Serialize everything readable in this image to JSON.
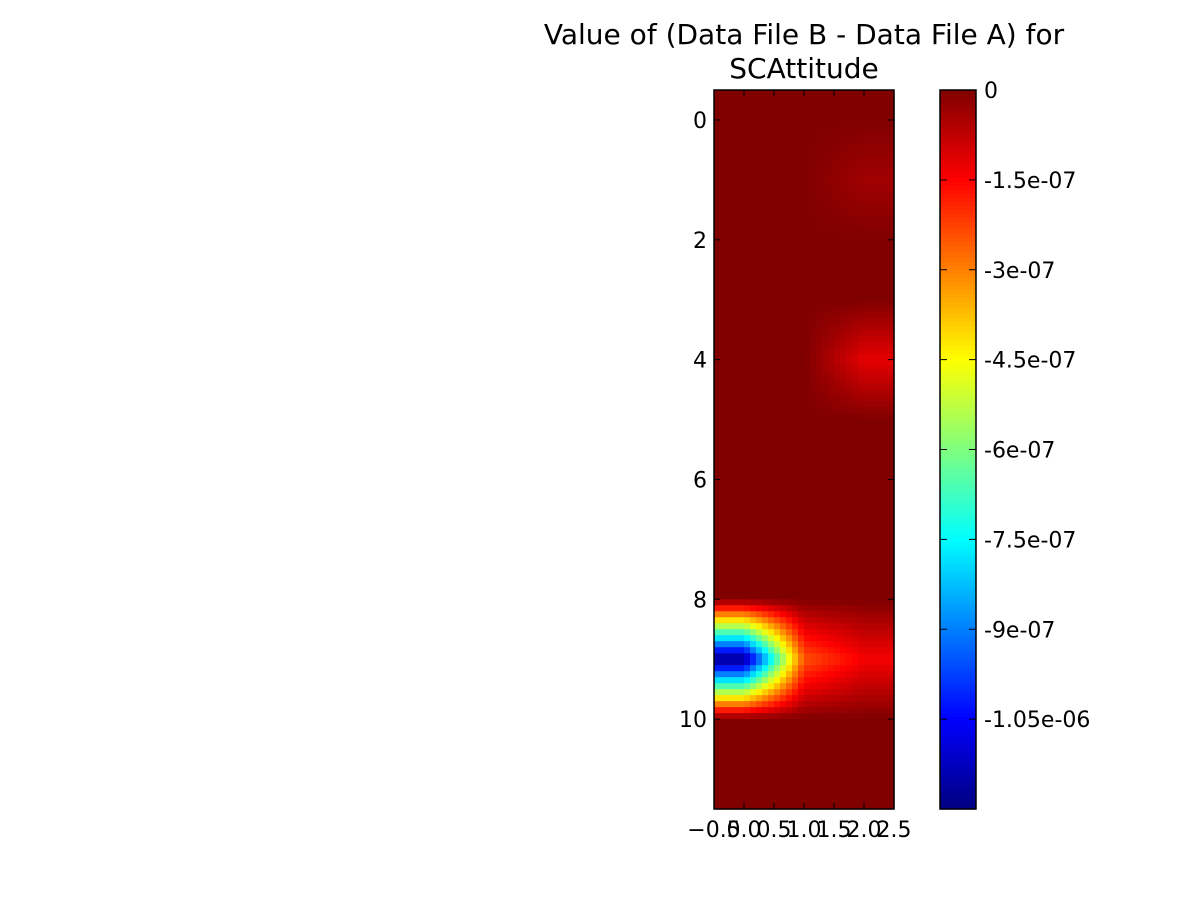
{
  "chart_data": {
    "type": "heatmap",
    "title_line1": "Value of (Data File B - Data File A) for",
    "title_line2": "SCAttitude",
    "xlabel": "",
    "ylabel": "",
    "xlim": [
      -0.5,
      2.5
    ],
    "ylim": [
      11.5,
      -0.5
    ],
    "x_ticks": [
      -0.5,
      0.0,
      0.5,
      1.0,
      1.5,
      2.0,
      2.5
    ],
    "x_tick_labels": [
      "−0.5",
      "0.0",
      "0.5",
      "1.0",
      "1.5",
      "2.0",
      "2.5"
    ],
    "y_ticks": [
      0,
      2,
      4,
      6,
      8,
      10
    ],
    "y_tick_labels": [
      "0",
      "2",
      "4",
      "6",
      "8",
      "10"
    ],
    "colormap": "jet",
    "interpolation": "bilinear",
    "rows": 12,
    "cols": 3,
    "values": [
      [
        0,
        0,
        0
      ],
      [
        0,
        0,
        -4e-08
      ],
      [
        0,
        0,
        0
      ],
      [
        0,
        0,
        0
      ],
      [
        0,
        0,
        -1.2e-07
      ],
      [
        0,
        0,
        0
      ],
      [
        0,
        0,
        0
      ],
      [
        0,
        0,
        0
      ],
      [
        0,
        0,
        0
      ],
      [
        -1.2e-06,
        -2.5e-07,
        -1.4e-07
      ],
      [
        0,
        0,
        0
      ],
      [
        0,
        0,
        0
      ]
    ],
    "colorbar": {
      "vmin": -1.2e-06,
      "vmax": 0,
      "ticks": [
        0,
        -1.5e-07,
        -3e-07,
        -4.5e-07,
        -6e-07,
        -7.5e-07,
        -9e-07,
        -1.05e-06
      ],
      "tick_labels": [
        "0",
        "-1.5e-07",
        "-3e-07",
        "-4.5e-07",
        "-6e-07",
        "-7.5e-07",
        "-9e-07",
        "-1.05e-06"
      ]
    }
  }
}
